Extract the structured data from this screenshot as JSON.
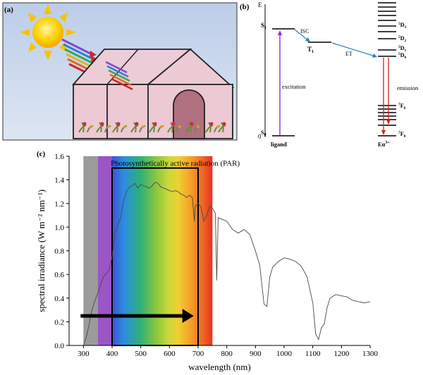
{
  "panel_a": {
    "label": "(a)"
  },
  "panel_b": {
    "label": "(b)",
    "axis_top": "E",
    "axis_zero": "0",
    "s1": "S",
    "s1_sub": "1",
    "t1": "T",
    "t1_sub": "1",
    "s0": "S",
    "s0_sub": "0",
    "isc": "ISC",
    "et": "ET",
    "excitation": "excitation",
    "emission": "emission",
    "ligand": "ligand",
    "eu": "Eu",
    "eu_sup": "3+",
    "levels": [
      {
        "main": "D",
        "pre": "5",
        "sub": "3"
      },
      {
        "main": "D",
        "pre": "5",
        "sub": "2"
      },
      {
        "main": "D",
        "pre": "5",
        "sub": "1"
      },
      {
        "main": "D",
        "pre": "5",
        "sub": "0"
      },
      {
        "main": "F",
        "pre": "7",
        "sub": "6"
      },
      {
        "main": "F",
        "pre": "7",
        "sub": "0"
      }
    ],
    "colors": {
      "excitation": "#8a2be2",
      "emission": "#d62020",
      "transfer": "#2f7fc8"
    }
  },
  "panel_c": {
    "label": "(c)",
    "chart_data": {
      "type": "line",
      "title": "",
      "xlabel": "wavelength (nm)",
      "ylabel": "spectral irradiance (W m⁻² nm⁻¹)",
      "xlim": [
        250,
        1300
      ],
      "ylim": [
        0.0,
        1.6
      ],
      "xticks": [
        "300",
        "400",
        "500",
        "600",
        "700",
        "800",
        "900",
        "1000",
        "1100",
        "1200",
        "1300"
      ],
      "yticks": [
        "0.0",
        "0.2",
        "0.4",
        "0.6",
        "0.8",
        "1.0",
        "1.2",
        "1.4",
        "1.6"
      ],
      "annotation": "Photosynthetically active radiation (PAR)",
      "par_range": [
        400,
        700
      ],
      "arrow_range": [
        290,
        660
      ],
      "arrow_y": 0.25,
      "series": [
        {
          "x": [
            300,
            310,
            320,
            330,
            340,
            350,
            360,
            370,
            380,
            390,
            400,
            410,
            420,
            430,
            440,
            450,
            460,
            470,
            480,
            490,
            500,
            510,
            520,
            530,
            540,
            550,
            560,
            570,
            580,
            590,
            600,
            610,
            620,
            630,
            640,
            650,
            660,
            670,
            680,
            687,
            690,
            700,
            710,
            720,
            730,
            740,
            750,
            760,
            765,
            770,
            780,
            800,
            820,
            840,
            860,
            880,
            900,
            915,
            930,
            940,
            950,
            960,
            980,
            1000,
            1020,
            1040,
            1060,
            1080,
            1100,
            1110,
            1120,
            1130,
            1140,
            1150,
            1160,
            1180,
            1200,
            1220,
            1240,
            1260,
            1280,
            1300
          ],
          "values": [
            0.0,
            0.07,
            0.18,
            0.3,
            0.38,
            0.44,
            0.52,
            0.58,
            0.61,
            0.64,
            0.75,
            0.95,
            1.02,
            1.08,
            1.22,
            1.3,
            1.34,
            1.35,
            1.37,
            1.33,
            1.36,
            1.35,
            1.34,
            1.33,
            1.35,
            1.38,
            1.37,
            1.34,
            1.33,
            1.32,
            1.31,
            1.3,
            1.31,
            1.3,
            1.28,
            1.27,
            1.25,
            1.27,
            1.25,
            1.05,
            1.18,
            1.2,
            1.17,
            1.05,
            1.1,
            1.18,
            1.16,
            1.12,
            0.55,
            1.08,
            1.07,
            1.05,
            0.98,
            0.95,
            0.98,
            0.94,
            0.8,
            0.68,
            0.35,
            0.33,
            0.58,
            0.66,
            0.71,
            0.74,
            0.73,
            0.71,
            0.67,
            0.58,
            0.36,
            0.1,
            0.05,
            0.15,
            0.18,
            0.32,
            0.4,
            0.43,
            0.42,
            0.41,
            0.38,
            0.37,
            0.36,
            0.37
          ]
        }
      ]
    }
  }
}
